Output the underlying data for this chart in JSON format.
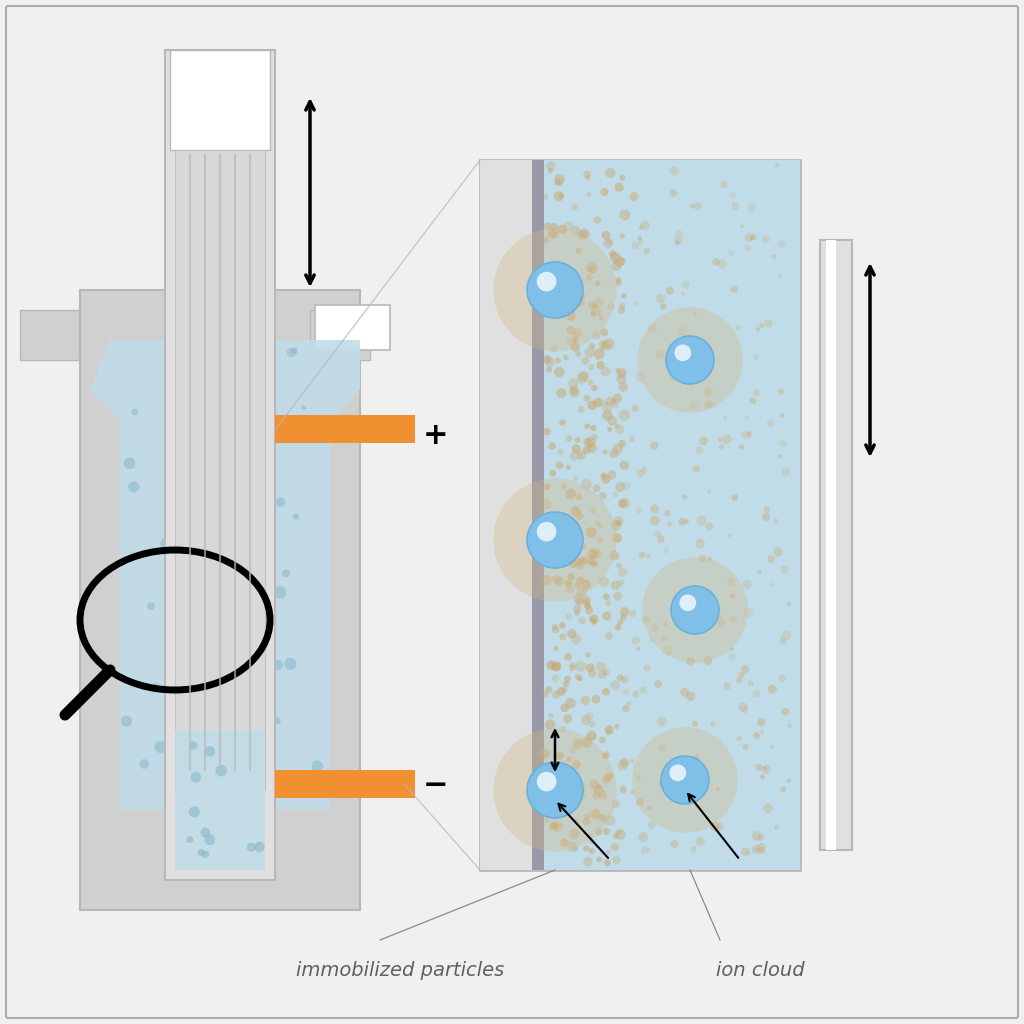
{
  "bg_color": "#e8e8e8",
  "border_color": "#aaaaaa",
  "gray_outer": "#c0c0c0",
  "gray_mid": "#d0d0d0",
  "gray_inner": "#e0e0e0",
  "gray_wall": "#b8b8b8",
  "orange_color": "#f09030",
  "blue_liquid": "#c0dce8",
  "blue_liquid_dots": "#a8c8dc",
  "blue_particle_light": "#80c0e8",
  "blue_particle_dark": "#4090c0",
  "ion_cloud_tan": "#c8a870",
  "ion_cloud_bg": "#d4b888",
  "text_color": "#606060",
  "label_immobilized": "immobilized particles",
  "label_ion_cloud": "ion cloud",
  "font_size": 14,
  "background": "#f0f0f0"
}
